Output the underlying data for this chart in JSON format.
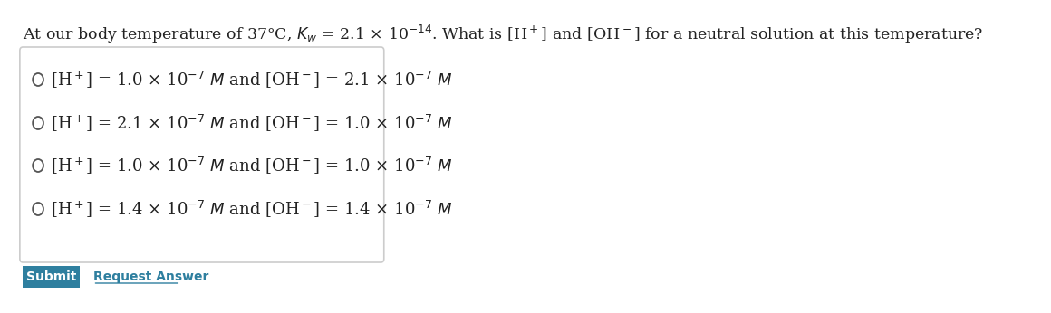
{
  "bg_color": "#ffffff",
  "title_text": "At our body temperature of 37°C, $K_w$ = 2.1 × 10$^{-14}$. What is [H$^+$] and [OH$^-$] for a neutral solution at this temperature?",
  "options": [
    "[H$^+$] = 1.0 × 10$^{-7}$ $M$ and [OH$^-$] = 2.1 × 10$^{-7}$ $M$",
    "[H$^+$] = 2.1 × 10$^{-7}$ $M$ and [OH$^-$] = 1.0 × 10$^{-7}$ $M$",
    "[H$^+$] = 1.0 × 10$^{-7}$ $M$ and [OH$^-$] = 1.0 × 10$^{-7}$ $M$",
    "[H$^+$] = 1.4 × 10$^{-7}$ $M$ and [OH$^-$] = 1.4 × 10$^{-7}$ $M$"
  ],
  "submit_label": "Submit",
  "request_label": "Request Answer",
  "submit_bg": "#2e7f9f",
  "submit_text_color": "#ffffff",
  "request_text_color": "#2e7f9f",
  "box_edge_color": "#cccccc",
  "option_font_size": 13,
  "title_font_size": 12.5,
  "circle_color": "#555555"
}
